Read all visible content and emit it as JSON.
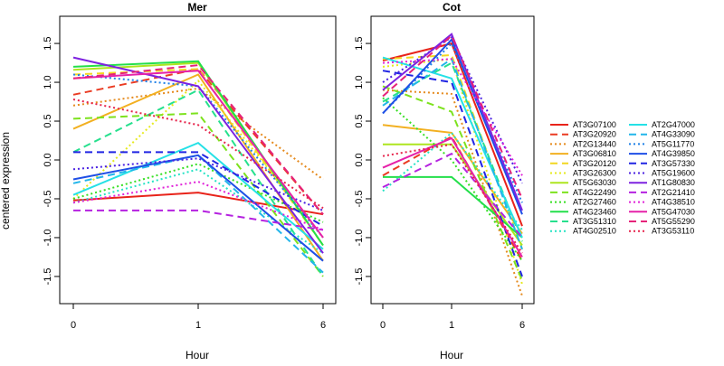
{
  "chart_data": [
    {
      "type": "line",
      "title": "Mer",
      "xlabel": "Hour",
      "ylabel": "centered expression",
      "categories": [
        "0",
        "1",
        "6"
      ],
      "x_ticks": [
        "0",
        "1",
        "6"
      ],
      "y_ticks": [
        "-1.5",
        "-1.0",
        "-0.5",
        "0.0",
        "0.5",
        "1.0",
        "1.5"
      ],
      "ylim": [
        -1.85,
        1.85
      ],
      "grid": false,
      "series": [
        {
          "name": "AT3G07100",
          "values": [
            -0.52,
            -0.42,
            -0.7
          ]
        },
        {
          "name": "AT3G20920",
          "values": [
            0.84,
            1.17,
            -0.7
          ]
        },
        {
          "name": "AT2G13440",
          "values": [
            0.7,
            0.92,
            -0.25
          ]
        },
        {
          "name": "AT3G06810",
          "values": [
            0.4,
            1.1,
            -1.3
          ]
        },
        {
          "name": "AT3G20120",
          "values": [
            1.1,
            1.17,
            -1.1
          ]
        },
        {
          "name": "AT3G26300",
          "values": [
            -0.5,
            1.02,
            -1.0
          ]
        },
        {
          "name": "AT5G63030",
          "values": [
            1.16,
            1.25,
            -1.1
          ]
        },
        {
          "name": "AT4G22490",
          "values": [
            0.53,
            0.6,
            -1.5
          ]
        },
        {
          "name": "AT2G27460",
          "values": [
            -0.5,
            -0.05,
            -0.8
          ]
        },
        {
          "name": "AT4G23460",
          "values": [
            1.2,
            1.27,
            -1.1
          ]
        },
        {
          "name": "AT3G51310",
          "values": [
            0.1,
            0.9,
            -1.5
          ]
        },
        {
          "name": "AT4G02510",
          "values": [
            -0.55,
            -0.12,
            -1.2
          ]
        },
        {
          "name": "AT2G47000",
          "values": [
            -0.45,
            0.22,
            -1.15
          ]
        },
        {
          "name": "AT4G33090",
          "values": [
            -0.3,
            0.06,
            -1.45
          ]
        },
        {
          "name": "AT5G11770",
          "values": [
            1.1,
            0.95,
            -1.0
          ]
        },
        {
          "name": "AT4G39850",
          "values": [
            -0.25,
            0.06,
            -1.3
          ]
        },
        {
          "name": "AT3G57330",
          "values": [
            0.1,
            0.1,
            -0.85
          ]
        },
        {
          "name": "AT5G19600",
          "values": [
            -0.12,
            0.02,
            -0.65
          ]
        },
        {
          "name": "AT1G80830",
          "values": [
            1.32,
            0.95,
            -1.2
          ]
        },
        {
          "name": "AT2G21410",
          "values": [
            -0.65,
            -0.65,
            -0.9
          ]
        },
        {
          "name": "AT4G38510",
          "values": [
            -0.55,
            -0.28,
            -0.9
          ]
        },
        {
          "name": "AT5G47030",
          "values": [
            1.05,
            1.15,
            -1.0
          ]
        },
        {
          "name": "AT5G55290",
          "values": [
            1.05,
            1.22,
            -0.7
          ]
        },
        {
          "name": "AT3G53110",
          "values": [
            0.78,
            0.45,
            -0.62
          ]
        }
      ]
    },
    {
      "type": "line",
      "title": "Cot",
      "xlabel": "Hour",
      "ylabel": "",
      "categories": [
        "0",
        "1",
        "6"
      ],
      "x_ticks": [
        "0",
        "1",
        "6"
      ],
      "y_ticks": [
        "-1.5",
        "-1.0",
        "-0.5",
        "0.0",
        "0.5",
        "1.0",
        "1.5"
      ],
      "ylim": [
        -1.85,
        1.85
      ],
      "grid": false,
      "series": [
        {
          "name": "AT3G07100",
          "values": [
            1.28,
            1.5,
            -0.85
          ]
        },
        {
          "name": "AT3G20920",
          "values": [
            -0.2,
            0.3,
            -1.3
          ]
        },
        {
          "name": "AT2G13440",
          "values": [
            0.9,
            0.85,
            -1.75
          ]
        },
        {
          "name": "AT3G06810",
          "values": [
            0.45,
            0.35,
            -0.95
          ]
        },
        {
          "name": "AT3G20120",
          "values": [
            1.3,
            1.35,
            -1.15
          ]
        },
        {
          "name": "AT3G26300",
          "values": [
            1.2,
            1.3,
            -1.6
          ]
        },
        {
          "name": "AT5G63030",
          "values": [
            0.2,
            0.2,
            -1.1
          ]
        },
        {
          "name": "AT4G22490",
          "values": [
            0.95,
            0.62,
            -1.55
          ]
        },
        {
          "name": "AT2G27460",
          "values": [
            0.8,
            0.0,
            -1.3
          ]
        },
        {
          "name": "AT4G23460",
          "values": [
            -0.22,
            -0.22,
            -1.0
          ]
        },
        {
          "name": "AT3G51310",
          "values": [
            0.75,
            1.25,
            -1.05
          ]
        },
        {
          "name": "AT4G02510",
          "values": [
            -0.4,
            0.35,
            -0.9
          ]
        },
        {
          "name": "AT2G47000",
          "values": [
            1.32,
            1.05,
            -1.0
          ]
        },
        {
          "name": "AT4G33090",
          "values": [
            0.7,
            1.3,
            -1.15
          ]
        },
        {
          "name": "AT5G11770",
          "values": [
            0.6,
            1.5,
            -0.55
          ]
        },
        {
          "name": "AT4G39850",
          "values": [
            0.6,
            1.55,
            -0.7
          ]
        },
        {
          "name": "AT3G57330",
          "values": [
            1.15,
            1.0,
            -1.5
          ]
        },
        {
          "name": "AT5G19600",
          "values": [
            1.0,
            1.58,
            -0.3
          ]
        },
        {
          "name": "AT1G80830",
          "values": [
            0.9,
            1.62,
            -0.65
          ]
        },
        {
          "name": "AT2G21410",
          "values": [
            -0.35,
            0.08,
            -1.0
          ]
        },
        {
          "name": "AT4G38510",
          "values": [
            1.25,
            1.3,
            -0.2
          ]
        },
        {
          "name": "AT5G47030",
          "values": [
            -0.1,
            0.28,
            -1.25
          ]
        },
        {
          "name": "AT5G55290",
          "values": [
            0.82,
            1.6,
            -0.5
          ]
        },
        {
          "name": "AT3G53110",
          "values": [
            0.05,
            0.2,
            -1.2
          ]
        }
      ]
    }
  ],
  "legend": [
    {
      "name": "AT3G07100",
      "color": "#e8231a",
      "dash": "solid"
    },
    {
      "name": "AT3G20920",
      "color": "#ea3b22",
      "dash": "dashed"
    },
    {
      "name": "AT2G13440",
      "color": "#e58a1d",
      "dash": "dotted"
    },
    {
      "name": "AT3G06810",
      "color": "#f2b021",
      "dash": "solid"
    },
    {
      "name": "AT3G20120",
      "color": "#f2d721",
      "dash": "dashed"
    },
    {
      "name": "AT3G26300",
      "color": "#e6ea1e",
      "dash": "dotted"
    },
    {
      "name": "AT5G63030",
      "color": "#aee51f",
      "dash": "solid"
    },
    {
      "name": "AT4G22490",
      "color": "#7de21e",
      "dash": "dashed"
    },
    {
      "name": "AT2G27460",
      "color": "#36df23",
      "dash": "dotted"
    },
    {
      "name": "AT4G23460",
      "color": "#23df4a",
      "dash": "solid"
    },
    {
      "name": "AT3G51310",
      "color": "#26e08e",
      "dash": "dashed"
    },
    {
      "name": "AT4G02510",
      "color": "#25e3c4",
      "dash": "dotted"
    },
    {
      "name": "AT2G47000",
      "color": "#25e1e6",
      "dash": "solid"
    },
    {
      "name": "AT4G33090",
      "color": "#22b5ea",
      "dash": "dashed"
    },
    {
      "name": "AT5G11770",
      "color": "#1f80e8",
      "dash": "dotted"
    },
    {
      "name": "AT4G39850",
      "color": "#1f4fe6",
      "dash": "solid"
    },
    {
      "name": "AT3G57330",
      "color": "#2125e3",
      "dash": "dashed"
    },
    {
      "name": "AT5G19600",
      "color": "#4b22e2",
      "dash": "dotted"
    },
    {
      "name": "AT1G80830",
      "color": "#7e22e0",
      "dash": "solid"
    },
    {
      "name": "AT2G21410",
      "color": "#b522e0",
      "dash": "dashed"
    },
    {
      "name": "AT4G38510",
      "color": "#e022d8",
      "dash": "dotted"
    },
    {
      "name": "AT5G47030",
      "color": "#e622a9",
      "dash": "solid"
    },
    {
      "name": "AT5G55290",
      "color": "#e6227a",
      "dash": "dashed"
    },
    {
      "name": "AT3G53110",
      "color": "#e6224a",
      "dash": "dotted"
    }
  ]
}
